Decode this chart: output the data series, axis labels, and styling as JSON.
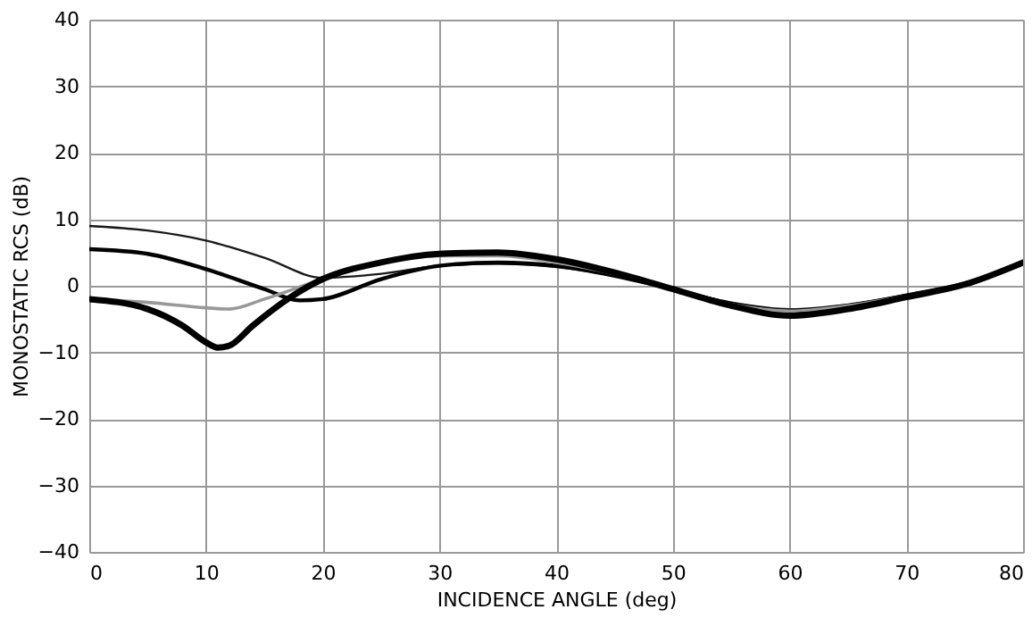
{
  "chart_data": {
    "type": "line",
    "xlabel": "INCIDENCE ANGLE (deg)",
    "ylabel": "MONOSTATIC RCS (dB)",
    "xlim": [
      0,
      80
    ],
    "xticks": [
      0,
      10,
      20,
      30,
      40,
      50,
      60,
      70,
      80
    ],
    "ylim": [
      -40,
      40
    ],
    "yticks": [
      -40,
      -30,
      -20,
      -10,
      0,
      10,
      20,
      30,
      40
    ],
    "grid": true,
    "marker": "none",
    "line_style": "solid",
    "series": [
      {
        "color": "#1a1a1a",
        "x": [
          0,
          5,
          10,
          15,
          20,
          25,
          30,
          35,
          40,
          45,
          50,
          55,
          60,
          65,
          70,
          75,
          80
        ],
        "values": [
          9,
          8.3,
          6.8,
          4.2,
          1.2,
          1.8,
          3,
          3.3,
          2.8,
          1.5,
          -0.5,
          -2.5,
          -3.5,
          -2.8,
          -1.3,
          0.5,
          3.5
        ]
      },
      {
        "color": "#000000",
        "x": [
          0,
          5,
          10,
          15,
          18,
          20,
          25,
          30,
          35,
          40,
          45,
          50,
          55,
          60,
          65,
          70,
          75,
          80
        ],
        "values": [
          5.5,
          4.8,
          2.5,
          -0.5,
          -2.2,
          -2,
          1,
          3,
          3.5,
          3,
          1.5,
          -0.5,
          -2.7,
          -3.8,
          -3,
          -1.5,
          0.3,
          3.5
        ]
      },
      {
        "color": "#999999",
        "x": [
          0,
          5,
          10,
          12,
          15,
          20,
          25,
          30,
          35,
          40,
          45,
          50,
          55,
          60,
          65,
          70,
          75,
          80
        ],
        "values": [
          -2,
          -2.5,
          -3.3,
          -3.5,
          -2,
          1,
          3.5,
          4.5,
          4.5,
          3.5,
          1.8,
          -0.5,
          -2.8,
          -3.8,
          -3,
          -1.5,
          0.3,
          3.5
        ]
      },
      {
        "color": "#000000",
        "x": [
          0,
          5,
          8,
          10,
          11,
          12,
          14,
          17,
          20,
          25,
          30,
          35,
          40,
          45,
          50,
          55,
          60,
          65,
          70,
          75,
          80
        ],
        "values": [
          -2,
          -3.5,
          -6,
          -8.5,
          -9.3,
          -9,
          -6,
          -2,
          1,
          3.5,
          4.8,
          5,
          4,
          2,
          -0.5,
          -3,
          -4.5,
          -3.5,
          -1.7,
          0.2,
          3.5
        ]
      }
    ]
  }
}
